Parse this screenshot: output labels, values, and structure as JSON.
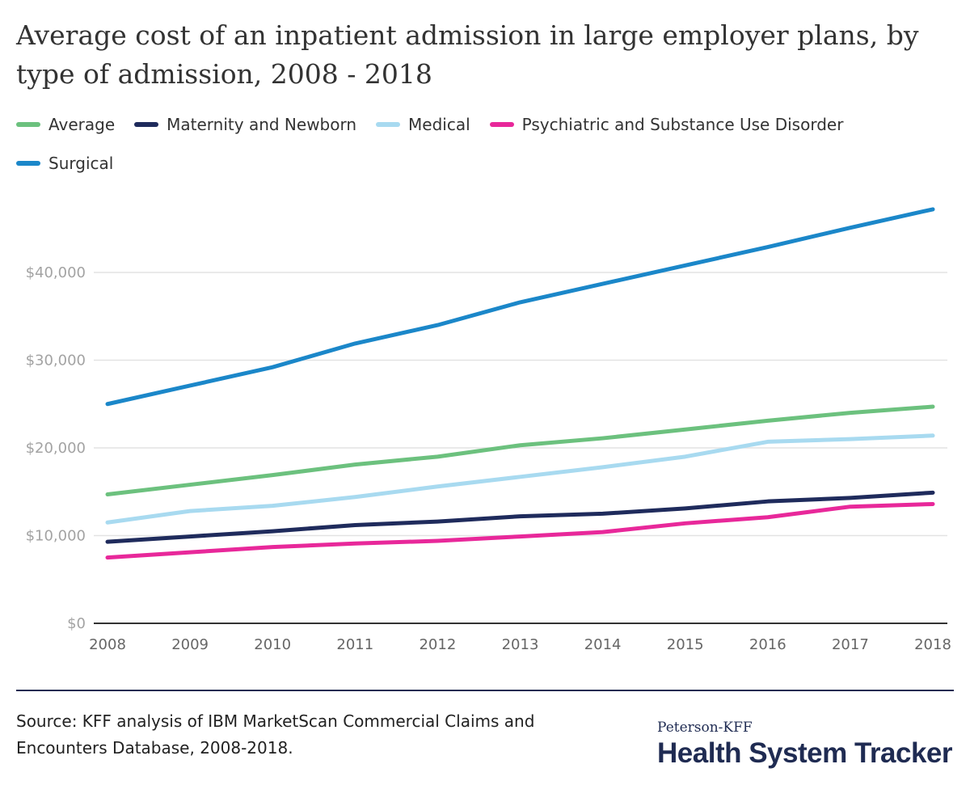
{
  "title": "Average cost of an inpatient admission in large employer plans, by type of admission, 2008 - 2018",
  "source": "Source: KFF analysis of IBM MarketScan Commercial Claims and Encounters Database, 2008-2018.",
  "brand": {
    "top": "Peterson-KFF",
    "main": "Health System Tracker"
  },
  "colors": {
    "average": "#6cc17e",
    "maternity": "#1f2b5c",
    "medical": "#a8daf0",
    "psychiatric": "#e8289a",
    "surgical": "#1b87c9",
    "divider": "#1f2b52"
  },
  "chart_data": {
    "type": "line",
    "title": "Average cost of an inpatient admission in large employer plans, by type of admission, 2008 - 2018",
    "xlabel": "",
    "ylabel": "",
    "x": [
      "2008",
      "2009",
      "2010",
      "2011",
      "2012",
      "2013",
      "2014",
      "2015",
      "2016",
      "2017",
      "2018"
    ],
    "ylim": [
      0,
      48000
    ],
    "yticks": [
      0,
      10000,
      20000,
      30000,
      40000
    ],
    "ytick_labels": [
      "$0",
      "$10,000",
      "$20,000",
      "$30,000",
      "$40,000"
    ],
    "grid": true,
    "legend_position": "top-left",
    "series": [
      {
        "name": "Average",
        "color": "#6cc17e",
        "values": [
          14700,
          15800,
          16900,
          18100,
          19000,
          20300,
          21100,
          22100,
          23100,
          24000,
          24700
        ]
      },
      {
        "name": "Maternity and Newborn",
        "color": "#1f2b5c",
        "values": [
          9300,
          9900,
          10500,
          11200,
          11600,
          12200,
          12500,
          13100,
          13900,
          14300,
          14900
        ]
      },
      {
        "name": "Medical",
        "color": "#a8daf0",
        "values": [
          11500,
          12800,
          13400,
          14400,
          15600,
          16700,
          17800,
          19000,
          20700,
          21000,
          21400
        ]
      },
      {
        "name": "Psychiatric and Substance Use Disorder",
        "color": "#e8289a",
        "values": [
          7500,
          8100,
          8700,
          9100,
          9400,
          9900,
          10400,
          11400,
          12100,
          13300,
          13600
        ]
      },
      {
        "name": "Surgical",
        "color": "#1b87c9",
        "values": [
          25000,
          27100,
          29200,
          31900,
          34000,
          36600,
          38700,
          40800,
          42900,
          45100,
          47200
        ]
      }
    ]
  }
}
